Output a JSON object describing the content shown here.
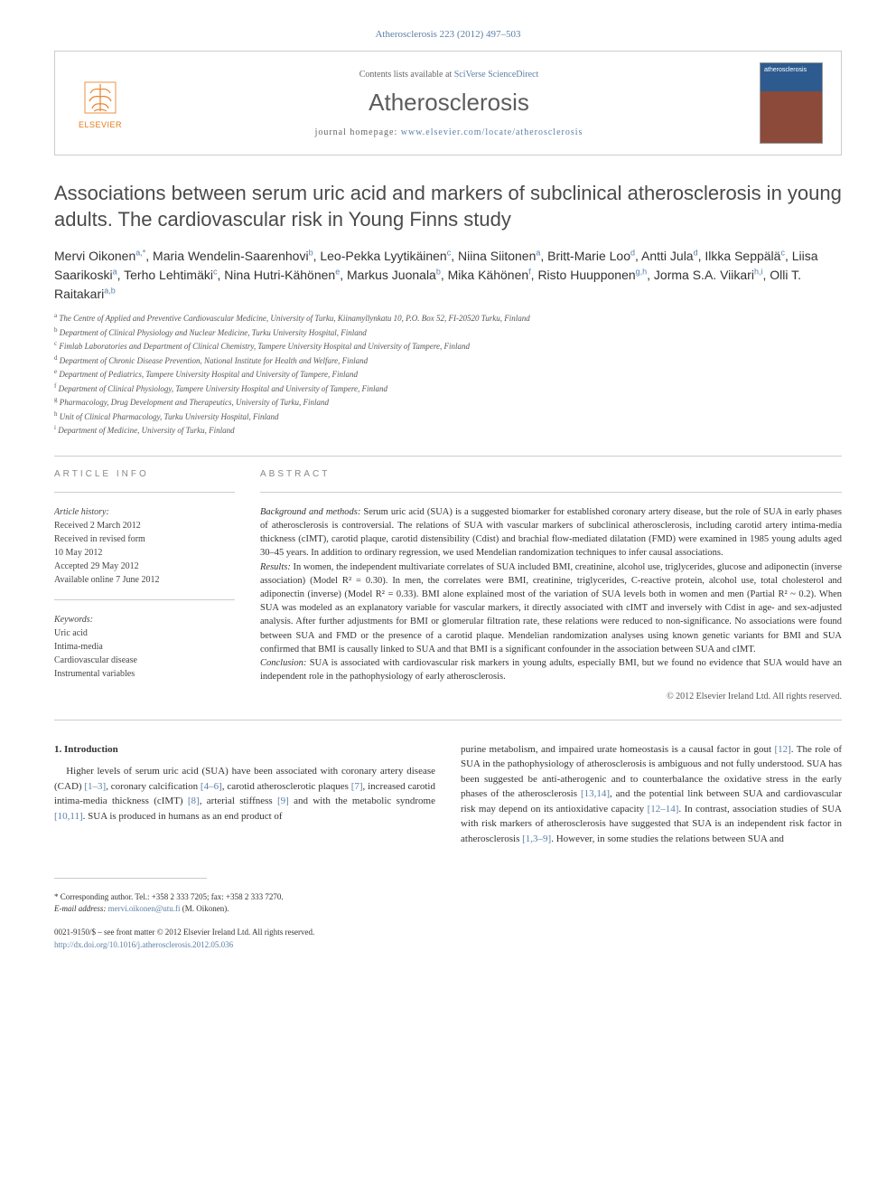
{
  "header": {
    "citation": "Atherosclerosis 223 (2012) 497–503",
    "publisher": "ELSEVIER",
    "contents_prefix": "Contents lists available at ",
    "contents_link": "SciVerse ScienceDirect",
    "journal_name": "Atherosclerosis",
    "homepage_prefix": "journal homepage: ",
    "homepage_link": "www.elsevier.com/locate/atherosclerosis",
    "cover_label": "atherosclerosis"
  },
  "article": {
    "title": "Associations between serum uric acid and markers of subclinical atherosclerosis in young adults. The cardiovascular risk in Young Finns study",
    "authors_html": "Mervi Oikonen<sup>a,*</sup>, Maria Wendelin-Saarenhovi<sup>b</sup>, Leo-Pekka Lyytikäinen<sup>c</sup>, Niina Siitonen<sup>a</sup>, Britt-Marie Loo<sup>d</sup>, Antti Jula<sup>d</sup>, Ilkka Seppälä<sup>c</sup>, Liisa Saarikoski<sup>a</sup>, Terho Lehtimäki<sup>c</sup>, Nina Hutri-Kähönen<sup>e</sup>, Markus Juonala<sup>b</sup>, Mika Kähönen<sup>f</sup>, Risto Huupponen<sup>g,h</sup>, Jorma S.A. Viikari<sup>h,i</sup>, Olli T. Raitakari<sup>a,b</sup>",
    "affiliations": [
      {
        "key": "a",
        "text": "The Centre of Applied and Preventive Cardiovascular Medicine, University of Turku, Kiinamyllynkatu 10, P.O. Box 52, FI-20520 Turku, Finland"
      },
      {
        "key": "b",
        "text": "Department of Clinical Physiology and Nuclear Medicine, Turku University Hospital, Finland"
      },
      {
        "key": "c",
        "text": "Fimlab Laboratories and Department of Clinical Chemistry, Tampere University Hospital and University of Tampere, Finland"
      },
      {
        "key": "d",
        "text": "Department of Chronic Disease Prevention, National Institute for Health and Welfare, Finland"
      },
      {
        "key": "e",
        "text": "Department of Pediatrics, Tampere University Hospital and University of Tampere, Finland"
      },
      {
        "key": "f",
        "text": "Department of Clinical Physiology, Tampere University Hospital and University of Tampere, Finland"
      },
      {
        "key": "g",
        "text": "Pharmacology, Drug Development and Therapeutics, University of Turku, Finland"
      },
      {
        "key": "h",
        "text": "Unit of Clinical Pharmacology, Turku University Hospital, Finland"
      },
      {
        "key": "i",
        "text": "Department of Medicine, University of Turku, Finland"
      }
    ]
  },
  "info": {
    "heading": "ARTICLE INFO",
    "history_label": "Article history:",
    "history": [
      "Received 2 March 2012",
      "Received in revised form",
      "10 May 2012",
      "Accepted 29 May 2012",
      "Available online 7 June 2012"
    ],
    "keywords_label": "Keywords:",
    "keywords": [
      "Uric acid",
      "Intima-media",
      "Cardiovascular disease",
      "Instrumental variables"
    ]
  },
  "abstract": {
    "heading": "ABSTRACT",
    "background_label": "Background and methods:",
    "background": " Serum uric acid (SUA) is a suggested biomarker for established coronary artery disease, but the role of SUA in early phases of atherosclerosis is controversial. The relations of SUA with vascular markers of subclinical atherosclerosis, including carotid artery intima-media thickness (cIMT), carotid plaque, carotid distensibility (Cdist) and brachial flow-mediated dilatation (FMD) were examined in 1985 young adults aged 30–45 years. In addition to ordinary regression, we used Mendelian randomization techniques to infer causal associations.",
    "results_label": "Results:",
    "results": " In women, the independent multivariate correlates of SUA included BMI, creatinine, alcohol use, triglycerides, glucose and adiponectin (inverse association) (Model R² = 0.30). In men, the correlates were BMI, creatinine, triglycerides, C-reactive protein, alcohol use, total cholesterol and adiponectin (inverse) (Model R² = 0.33). BMI alone explained most of the variation of SUA levels both in women and men (Partial R² ~ 0.2). When SUA was modeled as an explanatory variable for vascular markers, it directly associated with cIMT and inversely with Cdist in age- and sex-adjusted analysis. After further adjustments for BMI or glomerular filtration rate, these relations were reduced to non-significance. No associations were found between SUA and FMD or the presence of a carotid plaque. Mendelian randomization analyses using known genetic variants for BMI and SUA confirmed that BMI is causally linked to SUA and that BMI is a significant confounder in the association between SUA and cIMT.",
    "conclusion_label": "Conclusion:",
    "conclusion": " SUA is associated with cardiovascular risk markers in young adults, especially BMI, but we found no evidence that SUA would have an independent role in the pathophysiology of early atherosclerosis.",
    "copyright": "© 2012 Elsevier Ireland Ltd. All rights reserved."
  },
  "body": {
    "intro_heading": "1. Introduction",
    "col1": "Higher levels of serum uric acid (SUA) have been associated with coronary artery disease (CAD) [1–3], coronary calcification [4–6], carotid atherosclerotic plaques [7], increased carotid intima-media thickness (cIMT) [8], arterial stiffness [9] and with the metabolic syndrome [10,11]. SUA is produced in humans as an end product of",
    "col2": "purine metabolism, and impaired urate homeostasis is a causal factor in gout [12]. The role of SUA in the pathophysiology of atherosclerosis is ambiguous and not fully understood. SUA has been suggested be anti-atherogenic and to counterbalance the oxidative stress in the early phases of the atherosclerosis [13,14], and the potential link between SUA and cardiovascular risk may depend on its antioxidative capacity [12–14]. In contrast, association studies of SUA with risk markers of atherosclerosis have suggested that SUA is an independent risk factor in atherosclerosis [1,3–9]. However, in some studies the relations between SUA and"
  },
  "footer": {
    "corresponding": "* Corresponding author. Tel.: +358 2 333 7205; fax: +358 2 333 7270.",
    "email_label": "E-mail address: ",
    "email": "mervi.oikonen@utu.fi",
    "email_suffix": " (M. Oikonen).",
    "issn": "0021-9150/$ – see front matter © 2012 Elsevier Ireland Ltd. All rights reserved.",
    "doi": "http://dx.doi.org/10.1016/j.atherosclerosis.2012.05.036"
  },
  "colors": {
    "link": "#5b7fa6",
    "publisher": "#e67817",
    "text": "#333333",
    "border": "#cccccc"
  }
}
